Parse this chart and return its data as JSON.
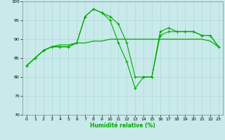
{
  "xlabel": "Humidité relative (%)",
  "background_color": "#c8eaea",
  "grid_color": "#b0d8d8",
  "line_color": "#00aa00",
  "ylim": [
    70,
    100
  ],
  "xlim": [
    -0.5,
    23.5
  ],
  "yticks": [
    70,
    75,
    80,
    85,
    90,
    95,
    100
  ],
  "xticks": [
    0,
    1,
    2,
    3,
    4,
    5,
    6,
    7,
    8,
    9,
    10,
    11,
    12,
    13,
    14,
    15,
    16,
    17,
    18,
    19,
    20,
    21,
    22,
    23
  ],
  "line1_x": [
    0,
    1,
    2,
    3,
    4,
    5,
    6,
    7,
    8,
    9,
    10,
    11,
    12,
    13,
    14,
    15,
    16,
    17,
    18,
    19,
    20,
    21,
    22,
    23
  ],
  "line1_y": [
    83,
    85,
    87,
    88,
    88,
    88,
    89,
    96,
    98,
    97,
    96,
    94,
    89,
    80,
    80,
    80,
    92,
    93,
    92,
    92,
    92,
    91,
    91,
    88
  ],
  "line2_x": [
    0,
    1,
    2,
    3,
    4,
    5,
    6,
    7,
    8,
    9,
    10,
    11,
    12,
    13,
    14,
    15,
    16,
    17,
    18,
    19,
    20,
    21,
    22,
    23
  ],
  "line2_y": [
    83,
    85,
    87,
    88,
    88.5,
    88.5,
    89,
    89,
    89.5,
    89.5,
    90,
    90,
    90,
    90,
    90,
    90,
    90,
    90,
    90,
    90,
    90,
    90,
    89.5,
    88
  ],
  "line3_x": [
    0,
    1,
    2,
    3,
    4,
    5,
    6,
    7,
    8,
    9,
    10,
    11,
    12,
    13,
    14,
    15,
    16,
    17,
    18,
    19,
    20,
    21,
    22,
    23
  ],
  "line3_y": [
    83,
    85,
    87,
    88,
    88,
    88,
    89,
    96,
    98,
    97,
    95,
    89,
    84,
    77,
    80,
    80,
    91,
    92,
    92,
    92,
    92,
    91,
    91,
    88
  ]
}
